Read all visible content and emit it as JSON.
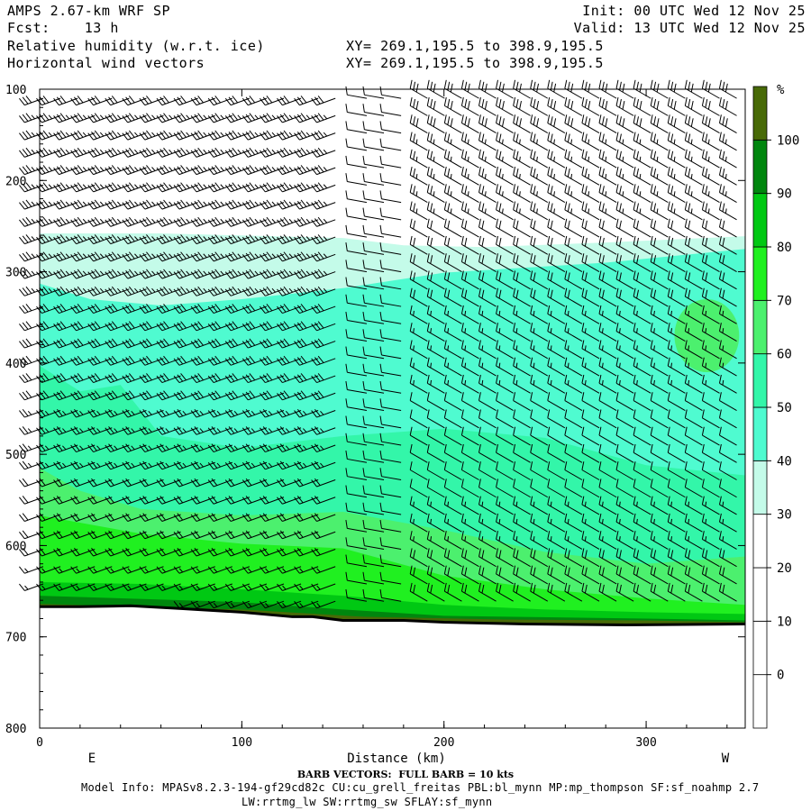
{
  "header": {
    "model": "AMPS 2.67-km WRF SP",
    "fcst": "Fcst:    13 h",
    "field": "Relative humidity (w.r.t. ice)",
    "overlay": "Horizontal wind vectors",
    "xy1": "XY= 269.1,195.5 to 398.9,195.5",
    "xy2": "XY= 269.1,195.5 to 398.9,195.5",
    "init": "Init: 00 UTC Wed 12 Nov 25",
    "valid": "Valid: 13 UTC Wed 12 Nov 25"
  },
  "footer": {
    "barb_note": "BARB VECTORS:  FULL BARB = 10 kts",
    "model_info": "Model Info: MPASv8.2.3-194-gf29cd82c CU:cu_grell_freitas PBL:bl_mynn MP:mp_thompson SF:sf_noahmp 2.7",
    "model_info2": "LW:rrtmg_lw SW:rrtmg_sw SFLAY:sf_mynn"
  },
  "chart_data": {
    "type": "heatmap",
    "title": "Relative humidity (w.r.t. ice)",
    "xlabel": "Distance (km)",
    "ylabel": "",
    "xlim": [
      0,
      349
    ],
    "ylim": [
      800,
      100
    ],
    "x_ticks": [
      0,
      100,
      200,
      300
    ],
    "y_ticks": [
      100,
      200,
      300,
      400,
      500,
      600,
      700,
      800
    ],
    "x_end_labels": {
      "left": "E",
      "right": "W"
    },
    "colorbar": {
      "unit": "%",
      "levels": [
        -10,
        0,
        10,
        20,
        30,
        40,
        50,
        60,
        70,
        80,
        90,
        100,
        110
      ],
      "tick_labels": [
        "0",
        "10",
        "20",
        "30",
        "40",
        "50",
        "60",
        "70",
        "80",
        "90",
        "100"
      ],
      "colors": [
        "#ffffff",
        "#ffffff",
        "#ffffff",
        "#ffffff",
        "#c4fbe9",
        "#4ffbd0",
        "#33f6a9",
        "#4cf06e",
        "#20f020",
        "#00c813",
        "#00860e",
        "#486a07"
      ]
    },
    "terrain_surface": [
      {
        "x": 0,
        "p": 667
      },
      {
        "x": 20,
        "p": 667
      },
      {
        "x": 45,
        "p": 666
      },
      {
        "x": 70,
        "p": 669
      },
      {
        "x": 100,
        "p": 673
      },
      {
        "x": 125,
        "p": 678
      },
      {
        "x": 135,
        "p": 678
      },
      {
        "x": 150,
        "p": 682
      },
      {
        "x": 180,
        "p": 682
      },
      {
        "x": 200,
        "p": 684
      },
      {
        "x": 240,
        "p": 686
      },
      {
        "x": 290,
        "p": 687
      },
      {
        "x": 349,
        "p": 686
      }
    ],
    "rh_isopleths": [
      {
        "level": 30,
        "top": [
          {
            "x": 0,
            "p": 258
          },
          {
            "x": 60,
            "p": 258
          },
          {
            "x": 150,
            "p": 263
          },
          {
            "x": 180,
            "p": 271
          },
          {
            "x": 220,
            "p": 273
          },
          {
            "x": 280,
            "p": 268
          },
          {
            "x": 349,
            "p": 261
          }
        ]
      },
      {
        "level": 40,
        "top": [
          {
            "x": 0,
            "p": 313
          },
          {
            "x": 25,
            "p": 330
          },
          {
            "x": 60,
            "p": 337
          },
          {
            "x": 100,
            "p": 330
          },
          {
            "x": 150,
            "p": 318
          },
          {
            "x": 200,
            "p": 301
          },
          {
            "x": 280,
            "p": 290
          },
          {
            "x": 349,
            "p": 275
          }
        ]
      },
      {
        "level": 50,
        "top": [
          {
            "x": 0,
            "p": 403
          },
          {
            "x": 20,
            "p": 431
          },
          {
            "x": 40,
            "p": 424
          },
          {
            "x": 60,
            "p": 480
          },
          {
            "x": 100,
            "p": 493
          },
          {
            "x": 150,
            "p": 480
          },
          {
            "x": 200,
            "p": 472
          },
          {
            "x": 250,
            "p": 482
          },
          {
            "x": 300,
            "p": 512
          },
          {
            "x": 349,
            "p": 523
          }
        ]
      },
      {
        "level": 60,
        "top": [
          {
            "x": 0,
            "p": 515
          },
          {
            "x": 20,
            "p": 540
          },
          {
            "x": 50,
            "p": 560
          },
          {
            "x": 100,
            "p": 567
          },
          {
            "x": 150,
            "p": 563
          },
          {
            "x": 200,
            "p": 583
          },
          {
            "x": 250,
            "p": 607
          },
          {
            "x": 300,
            "p": 620
          },
          {
            "x": 349,
            "p": 612
          }
        ]
      },
      {
        "level": 70,
        "top": [
          {
            "x": 0,
            "p": 567
          },
          {
            "x": 50,
            "p": 587
          },
          {
            "x": 100,
            "p": 598
          },
          {
            "x": 150,
            "p": 603
          },
          {
            "x": 200,
            "p": 633
          },
          {
            "x": 250,
            "p": 648
          },
          {
            "x": 300,
            "p": 658
          },
          {
            "x": 349,
            "p": 665
          }
        ]
      },
      {
        "level": 80,
        "top": [
          {
            "x": 0,
            "p": 640
          },
          {
            "x": 50,
            "p": 642
          },
          {
            "x": 100,
            "p": 648
          },
          {
            "x": 150,
            "p": 655
          },
          {
            "x": 200,
            "p": 665
          },
          {
            "x": 250,
            "p": 670
          },
          {
            "x": 300,
            "p": 673
          },
          {
            "x": 349,
            "p": 675
          }
        ]
      },
      {
        "level": 90,
        "top": [
          {
            "x": 0,
            "p": 655
          },
          {
            "x": 100,
            "p": 662
          },
          {
            "x": 150,
            "p": 670
          },
          {
            "x": 200,
            "p": 677
          },
          {
            "x": 300,
            "p": 680
          },
          {
            "x": 349,
            "p": 682
          }
        ]
      },
      {
        "level": 100,
        "top": [
          {
            "x": 0,
            "p": 664
          },
          {
            "x": 100,
            "p": 670
          },
          {
            "x": 160,
            "p": 678
          },
          {
            "x": 230,
            "p": 681
          },
          {
            "x": 300,
            "p": 682
          },
          {
            "x": 349,
            "p": 684
          }
        ]
      }
    ],
    "rh_pockets": [
      {
        "level": 60,
        "center": {
          "x": 330,
          "p": 370
        },
        "radius_km": 16,
        "radius_hpa": 40
      }
    ],
    "wind_barbs": {
      "full_barb_kts": 10,
      "column_spacing_km": 8.5,
      "level_spacing_hpa": 10,
      "columns": [
        {
          "x_min": 0,
          "x_max": 150,
          "direction_deg": 250,
          "speed_profile": [
            {
              "p": 100,
              "kts": 32
            },
            {
              "p": 250,
              "kts": 35
            },
            {
              "p": 400,
              "kts": 30
            },
            {
              "p": 550,
              "kts": 20
            },
            {
              "p": 660,
              "kts": 15
            }
          ]
        },
        {
          "x_min": 160,
          "x_max": 180,
          "direction_deg": 280,
          "speed_profile": [
            {
              "p": 100,
              "kts": 10
            },
            {
              "p": 400,
              "kts": 10
            },
            {
              "p": 680,
              "kts": 10
            }
          ]
        },
        {
          "x_min": 190,
          "x_max": 349,
          "direction_deg": 300,
          "speed_profile": [
            {
              "p": 100,
              "kts": 30
            },
            {
              "p": 300,
              "kts": 20
            },
            {
              "p": 500,
              "kts": 10
            },
            {
              "p": 600,
              "kts": 15
            },
            {
              "p": 690,
              "kts": 25
            }
          ]
        }
      ]
    }
  }
}
